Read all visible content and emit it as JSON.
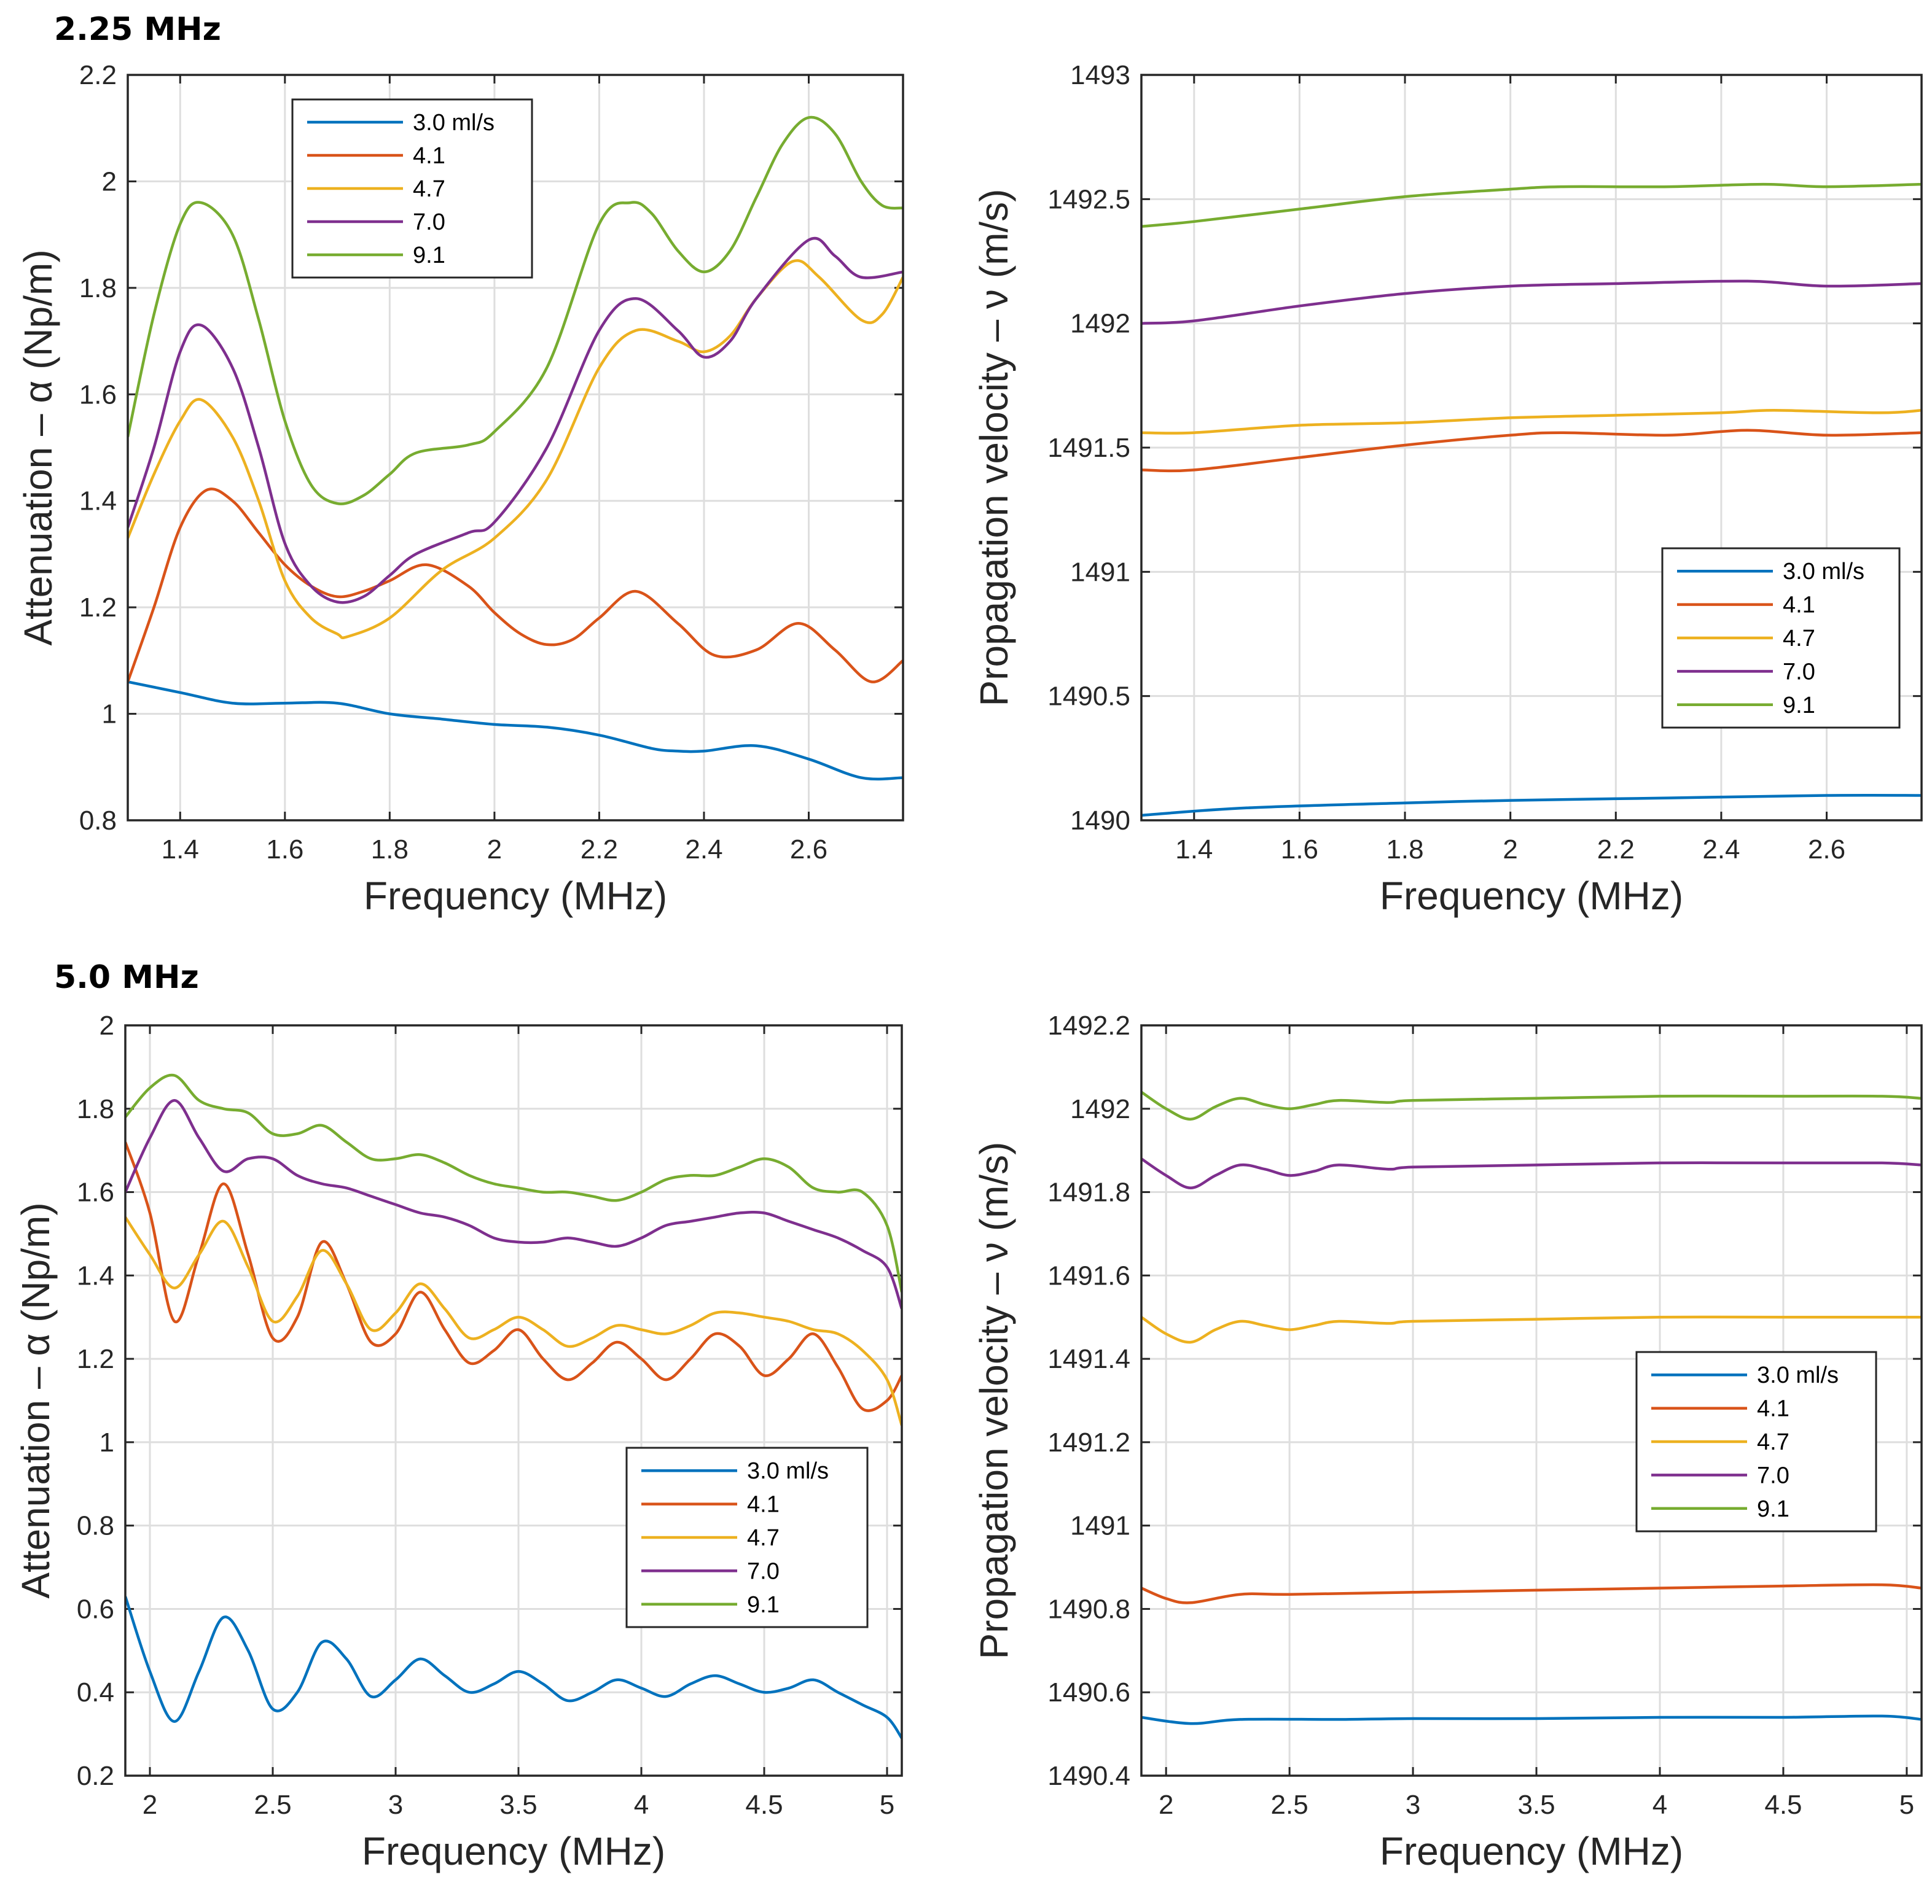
{
  "section_labels": [
    "2.25 MHz",
    "5.0 MHz"
  ],
  "colors": {
    "3.0 ml/s": "#0072BD",
    "4.1": "#D95319",
    "4.7": "#EDB120",
    "7.0": "#7E2F8E",
    "9.1": "#77AC30"
  },
  "chart_data": [
    {
      "id": "att-225",
      "type": "line",
      "section": "2.25 MHz",
      "xlabel": "Frequency (MHz)",
      "ylabel": "Attenuation – α (Np/m)",
      "xlim": [
        1.3,
        2.78
      ],
      "ylim": [
        0.8,
        2.2
      ],
      "xticks": [
        "1.4",
        "1.6",
        "1.8",
        "2",
        "2.2",
        "2.4",
        "2.6"
      ],
      "yticks": [
        "0.8",
        "1",
        "1.2",
        "1.4",
        "1.6",
        "1.8",
        "2",
        "2.2"
      ],
      "legend": {
        "position": "top-center",
        "entries": [
          "3.0 ml/s",
          "4.1",
          "4.7",
          "7.0",
          "9.1"
        ]
      },
      "series": [
        {
          "name": "3.0 ml/s",
          "x": [
            1.3,
            1.4,
            1.5,
            1.6,
            1.7,
            1.8,
            1.9,
            2.0,
            2.1,
            2.2,
            2.3,
            2.35,
            2.4,
            2.5,
            2.6,
            2.7,
            2.78
          ],
          "y": [
            1.06,
            1.04,
            1.02,
            1.02,
            1.02,
            1.0,
            0.99,
            0.98,
            0.975,
            0.96,
            0.935,
            0.93,
            0.93,
            0.94,
            0.915,
            0.88,
            0.88
          ]
        },
        {
          "name": "4.1",
          "x": [
            1.3,
            1.35,
            1.4,
            1.45,
            1.5,
            1.55,
            1.6,
            1.65,
            1.7,
            1.75,
            1.8,
            1.87,
            1.95,
            2.0,
            2.05,
            2.1,
            2.15,
            2.2,
            2.27,
            2.35,
            2.42,
            2.5,
            2.58,
            2.65,
            2.72,
            2.78
          ],
          "y": [
            1.06,
            1.2,
            1.35,
            1.42,
            1.4,
            1.34,
            1.28,
            1.24,
            1.22,
            1.23,
            1.25,
            1.28,
            1.24,
            1.19,
            1.15,
            1.13,
            1.14,
            1.18,
            1.23,
            1.17,
            1.11,
            1.12,
            1.17,
            1.12,
            1.06,
            1.1
          ]
        },
        {
          "name": "4.7",
          "x": [
            1.3,
            1.35,
            1.4,
            1.44,
            1.5,
            1.55,
            1.6,
            1.65,
            1.7,
            1.72,
            1.8,
            1.9,
            2.0,
            2.1,
            2.2,
            2.27,
            2.35,
            2.4,
            2.45,
            2.5,
            2.57,
            2.62,
            2.7,
            2.74,
            2.78
          ],
          "y": [
            1.33,
            1.45,
            1.55,
            1.59,
            1.52,
            1.4,
            1.25,
            1.18,
            1.15,
            1.145,
            1.18,
            1.27,
            1.33,
            1.44,
            1.65,
            1.72,
            1.7,
            1.68,
            1.71,
            1.78,
            1.85,
            1.82,
            1.74,
            1.75,
            1.82
          ]
        },
        {
          "name": "7.0",
          "x": [
            1.3,
            1.35,
            1.4,
            1.44,
            1.5,
            1.55,
            1.6,
            1.65,
            1.7,
            1.75,
            1.8,
            1.85,
            1.95,
            2.0,
            2.1,
            2.2,
            2.27,
            2.35,
            2.4,
            2.45,
            2.5,
            2.6,
            2.65,
            2.7,
            2.78
          ],
          "y": [
            1.35,
            1.5,
            1.68,
            1.73,
            1.65,
            1.5,
            1.32,
            1.24,
            1.21,
            1.22,
            1.26,
            1.3,
            1.34,
            1.36,
            1.5,
            1.72,
            1.78,
            1.72,
            1.67,
            1.7,
            1.78,
            1.89,
            1.86,
            1.82,
            1.83
          ]
        },
        {
          "name": "9.1",
          "x": [
            1.3,
            1.35,
            1.4,
            1.44,
            1.5,
            1.55,
            1.6,
            1.65,
            1.7,
            1.75,
            1.8,
            1.85,
            1.95,
            2.0,
            2.1,
            2.2,
            2.26,
            2.3,
            2.35,
            2.4,
            2.45,
            2.5,
            2.55,
            2.6,
            2.65,
            2.7,
            2.74,
            2.78
          ],
          "y": [
            1.52,
            1.75,
            1.92,
            1.96,
            1.9,
            1.74,
            1.55,
            1.43,
            1.395,
            1.41,
            1.45,
            1.49,
            1.505,
            1.53,
            1.65,
            1.92,
            1.96,
            1.94,
            1.87,
            1.83,
            1.87,
            1.97,
            2.07,
            2.12,
            2.09,
            2.0,
            1.955,
            1.95
          ]
        }
      ]
    },
    {
      "id": "vel-225",
      "type": "line",
      "section": "2.25 MHz",
      "xlabel": "Frequency (MHz)",
      "ylabel": "Propagation velocity – ν (m/s)",
      "xlim": [
        1.3,
        2.78
      ],
      "ylim": [
        1490,
        1493
      ],
      "xticks": [
        "1.4",
        "1.6",
        "1.8",
        "2",
        "2.2",
        "2.4",
        "2.6"
      ],
      "yticks": [
        "1490",
        "1490.5",
        "1491",
        "1491.5",
        "1492",
        "1492.5",
        "1493"
      ],
      "legend": {
        "position": "center-right",
        "entries": [
          "3.0 ml/s",
          "4.1",
          "4.7",
          "7.0",
          "9.1"
        ]
      },
      "series": [
        {
          "name": "3.0 ml/s",
          "x": [
            1.3,
            1.5,
            1.8,
            2.0,
            2.3,
            2.6,
            2.78
          ],
          "y": [
            1490.02,
            1490.05,
            1490.07,
            1490.08,
            1490.09,
            1490.1,
            1490.1
          ]
        },
        {
          "name": "4.1",
          "x": [
            1.3,
            1.4,
            1.6,
            1.8,
            2.0,
            2.1,
            2.3,
            2.45,
            2.6,
            2.78
          ],
          "y": [
            1491.41,
            1491.41,
            1491.46,
            1491.51,
            1491.55,
            1491.56,
            1491.55,
            1491.57,
            1491.55,
            1491.56
          ]
        },
        {
          "name": "4.7",
          "x": [
            1.3,
            1.4,
            1.6,
            1.8,
            2.0,
            2.2,
            2.4,
            2.5,
            2.7,
            2.78
          ],
          "y": [
            1491.56,
            1491.56,
            1491.59,
            1491.6,
            1491.62,
            1491.63,
            1491.64,
            1491.65,
            1491.64,
            1491.65
          ]
        },
        {
          "name": "7.0",
          "x": [
            1.3,
            1.4,
            1.6,
            1.8,
            2.0,
            2.2,
            2.45,
            2.6,
            2.78
          ],
          "y": [
            1492.0,
            1492.01,
            1492.07,
            1492.12,
            1492.15,
            1492.16,
            1492.17,
            1492.15,
            1492.16
          ]
        },
        {
          "name": "9.1",
          "x": [
            1.3,
            1.4,
            1.6,
            1.8,
            2.0,
            2.1,
            2.3,
            2.48,
            2.6,
            2.78
          ],
          "y": [
            1492.39,
            1492.41,
            1492.46,
            1492.51,
            1492.54,
            1492.55,
            1492.55,
            1492.56,
            1492.55,
            1492.56
          ]
        }
      ]
    },
    {
      "id": "att-50",
      "type": "line",
      "section": "5.0 MHz",
      "xlabel": "Frequency (MHz)",
      "ylabel": "Attenuation – α (Np/m)",
      "xlim": [
        1.9,
        5.06
      ],
      "ylim": [
        0.2,
        2.0
      ],
      "xticks": [
        "2",
        "2.5",
        "3",
        "3.5",
        "4",
        "4.5",
        "5"
      ],
      "yticks": [
        "0.2",
        "0.4",
        "0.6",
        "0.8",
        "1",
        "1.2",
        "1.4",
        "1.6",
        "1.8",
        "2"
      ],
      "legend": {
        "position": "lower-right",
        "entries": [
          "3.0 ml/s",
          "4.1",
          "4.7",
          "7.0",
          "9.1"
        ]
      },
      "series": [
        {
          "name": "3.0 ml/s",
          "x": [
            1.9,
            2.0,
            2.1,
            2.2,
            2.3,
            2.4,
            2.5,
            2.6,
            2.7,
            2.8,
            2.9,
            3.0,
            3.1,
            3.2,
            3.3,
            3.4,
            3.5,
            3.6,
            3.7,
            3.8,
            3.9,
            4.0,
            4.1,
            4.2,
            4.3,
            4.4,
            4.5,
            4.6,
            4.7,
            4.8,
            4.9,
            5.0,
            5.06
          ],
          "y": [
            0.63,
            0.45,
            0.33,
            0.45,
            0.58,
            0.5,
            0.36,
            0.4,
            0.52,
            0.48,
            0.39,
            0.43,
            0.48,
            0.44,
            0.4,
            0.42,
            0.45,
            0.42,
            0.38,
            0.4,
            0.43,
            0.41,
            0.39,
            0.42,
            0.44,
            0.42,
            0.4,
            0.41,
            0.43,
            0.4,
            0.37,
            0.34,
            0.29
          ]
        },
        {
          "name": "4.1",
          "x": [
            1.9,
            2.0,
            2.1,
            2.2,
            2.3,
            2.4,
            2.5,
            2.6,
            2.7,
            2.8,
            2.9,
            3.0,
            3.1,
            3.2,
            3.3,
            3.4,
            3.5,
            3.6,
            3.7,
            3.8,
            3.9,
            4.0,
            4.1,
            4.2,
            4.3,
            4.4,
            4.5,
            4.6,
            4.7,
            4.8,
            4.9,
            5.0,
            5.06
          ],
          "y": [
            1.72,
            1.55,
            1.29,
            1.45,
            1.62,
            1.45,
            1.25,
            1.3,
            1.48,
            1.38,
            1.24,
            1.26,
            1.36,
            1.27,
            1.19,
            1.22,
            1.27,
            1.2,
            1.15,
            1.19,
            1.24,
            1.2,
            1.15,
            1.2,
            1.26,
            1.23,
            1.16,
            1.2,
            1.26,
            1.18,
            1.08,
            1.1,
            1.16
          ]
        },
        {
          "name": "4.7",
          "x": [
            1.9,
            2.0,
            2.1,
            2.2,
            2.3,
            2.4,
            2.5,
            2.6,
            2.7,
            2.8,
            2.9,
            3.0,
            3.1,
            3.2,
            3.3,
            3.4,
            3.5,
            3.6,
            3.7,
            3.8,
            3.9,
            4.0,
            4.1,
            4.2,
            4.3,
            4.4,
            4.5,
            4.6,
            4.7,
            4.8,
            4.9,
            5.0,
            5.06
          ],
          "y": [
            1.54,
            1.45,
            1.37,
            1.45,
            1.53,
            1.42,
            1.29,
            1.35,
            1.46,
            1.38,
            1.27,
            1.31,
            1.38,
            1.32,
            1.25,
            1.27,
            1.3,
            1.27,
            1.23,
            1.25,
            1.28,
            1.27,
            1.26,
            1.28,
            1.31,
            1.31,
            1.3,
            1.29,
            1.27,
            1.26,
            1.22,
            1.15,
            1.04
          ]
        },
        {
          "name": "7.0",
          "x": [
            1.9,
            2.0,
            2.1,
            2.2,
            2.3,
            2.4,
            2.5,
            2.6,
            2.7,
            2.8,
            2.9,
            3.0,
            3.1,
            3.2,
            3.3,
            3.4,
            3.5,
            3.6,
            3.7,
            3.8,
            3.9,
            4.0,
            4.1,
            4.2,
            4.3,
            4.4,
            4.5,
            4.6,
            4.7,
            4.8,
            4.9,
            5.0,
            5.06
          ],
          "y": [
            1.6,
            1.73,
            1.82,
            1.73,
            1.65,
            1.68,
            1.68,
            1.64,
            1.62,
            1.61,
            1.59,
            1.57,
            1.55,
            1.54,
            1.52,
            1.49,
            1.48,
            1.48,
            1.49,
            1.48,
            1.47,
            1.49,
            1.52,
            1.53,
            1.54,
            1.55,
            1.55,
            1.53,
            1.51,
            1.49,
            1.46,
            1.42,
            1.32
          ]
        },
        {
          "name": "9.1",
          "x": [
            1.9,
            2.0,
            2.1,
            2.2,
            2.3,
            2.4,
            2.5,
            2.6,
            2.7,
            2.8,
            2.9,
            3.0,
            3.1,
            3.2,
            3.3,
            3.4,
            3.5,
            3.6,
            3.7,
            3.8,
            3.9,
            4.0,
            4.1,
            4.2,
            4.3,
            4.4,
            4.5,
            4.6,
            4.7,
            4.8,
            4.9,
            5.0,
            5.06
          ],
          "y": [
            1.78,
            1.85,
            1.88,
            1.82,
            1.8,
            1.79,
            1.74,
            1.74,
            1.76,
            1.72,
            1.68,
            1.68,
            1.69,
            1.67,
            1.64,
            1.62,
            1.61,
            1.6,
            1.6,
            1.59,
            1.58,
            1.6,
            1.63,
            1.64,
            1.64,
            1.66,
            1.68,
            1.66,
            1.61,
            1.6,
            1.6,
            1.52,
            1.36
          ]
        }
      ]
    },
    {
      "id": "vel-50",
      "type": "line",
      "section": "5.0 MHz",
      "xlabel": "Frequency (MHz)",
      "ylabel": "Propagation velocity – ν (m/s)",
      "xlim": [
        1.9,
        5.06
      ],
      "ylim": [
        1490.4,
        1492.2
      ],
      "xticks": [
        "2",
        "2.5",
        "3",
        "3.5",
        "4",
        "4.5",
        "5"
      ],
      "yticks": [
        "1490.4",
        "1490.6",
        "1490.8",
        "1491",
        "1491.2",
        "1491.4",
        "1491.6",
        "1491.8",
        "1492",
        "1492.2"
      ],
      "legend": {
        "position": "center-right",
        "entries": [
          "3.0 ml/s",
          "4.1",
          "4.7",
          "7.0",
          "9.1"
        ]
      },
      "series": [
        {
          "name": "3.0 ml/s",
          "x": [
            1.9,
            2.1,
            2.3,
            2.7,
            3.0,
            3.5,
            4.0,
            4.5,
            4.9,
            5.06
          ],
          "y": [
            1490.54,
            1490.525,
            1490.535,
            1490.535,
            1490.537,
            1490.537,
            1490.54,
            1490.54,
            1490.543,
            1490.535
          ]
        },
        {
          "name": "4.1",
          "x": [
            1.9,
            2.0,
            2.1,
            2.3,
            2.5,
            3.0,
            3.5,
            4.0,
            4.5,
            4.9,
            5.06
          ],
          "y": [
            1490.85,
            1490.825,
            1490.815,
            1490.835,
            1490.835,
            1490.84,
            1490.845,
            1490.85,
            1490.855,
            1490.858,
            1490.85
          ]
        },
        {
          "name": "4.7",
          "x": [
            1.9,
            2.0,
            2.1,
            2.2,
            2.3,
            2.4,
            2.5,
            2.6,
            2.7,
            2.9,
            3.0,
            3.5,
            4.0,
            4.5,
            5.06
          ],
          "y": [
            1491.5,
            1491.46,
            1491.44,
            1491.47,
            1491.49,
            1491.48,
            1491.47,
            1491.48,
            1491.49,
            1491.485,
            1491.49,
            1491.495,
            1491.5,
            1491.5,
            1491.5
          ]
        },
        {
          "name": "7.0",
          "x": [
            1.9,
            2.0,
            2.1,
            2.2,
            2.3,
            2.4,
            2.5,
            2.6,
            2.7,
            2.9,
            3.0,
            3.5,
            4.0,
            4.5,
            4.9,
            5.06
          ],
          "y": [
            1491.88,
            1491.84,
            1491.81,
            1491.84,
            1491.865,
            1491.855,
            1491.84,
            1491.85,
            1491.865,
            1491.855,
            1491.86,
            1491.865,
            1491.87,
            1491.87,
            1491.87,
            1491.865
          ]
        },
        {
          "name": "9.1",
          "x": [
            1.9,
            2.0,
            2.1,
            2.2,
            2.3,
            2.4,
            2.5,
            2.6,
            2.7,
            2.9,
            3.0,
            3.5,
            4.0,
            4.5,
            4.9,
            5.06
          ],
          "y": [
            1492.04,
            1492.0,
            1491.975,
            1492.005,
            1492.025,
            1492.01,
            1492.0,
            1492.01,
            1492.02,
            1492.015,
            1492.02,
            1492.025,
            1492.03,
            1492.03,
            1492.03,
            1492.025
          ]
        }
      ]
    }
  ]
}
